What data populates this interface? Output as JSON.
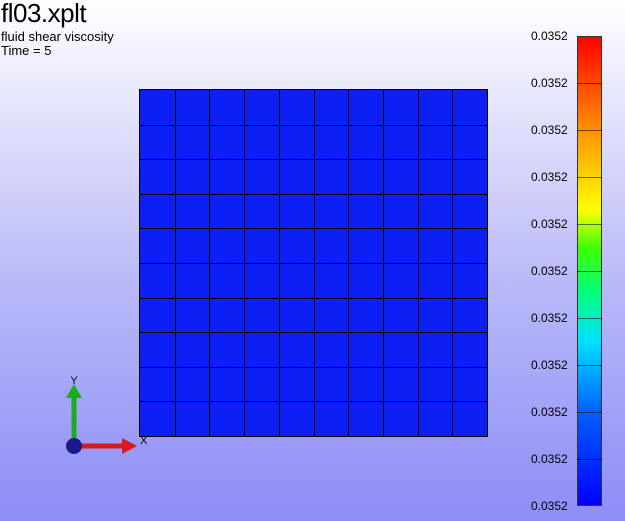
{
  "header": {
    "title": "fl03.xplt",
    "variable": "fluid shear viscosity",
    "time": "Time = 5"
  },
  "mesh": {
    "color": "#0c1ff5",
    "rows": 10,
    "cols": 10
  },
  "axes": {
    "x_label": "X",
    "y_label": "Y",
    "x_color": "#d81c1c",
    "y_color": "#1eaa1e",
    "origin_color": "#1a1a8c"
  },
  "colorbar": {
    "labels": [
      "0.0352",
      "0.0352",
      "0.0352",
      "0.0352",
      "0.0352",
      "0.0352",
      "0.0352",
      "0.0352",
      "0.0352",
      "0.0352",
      "0.0352"
    ]
  }
}
